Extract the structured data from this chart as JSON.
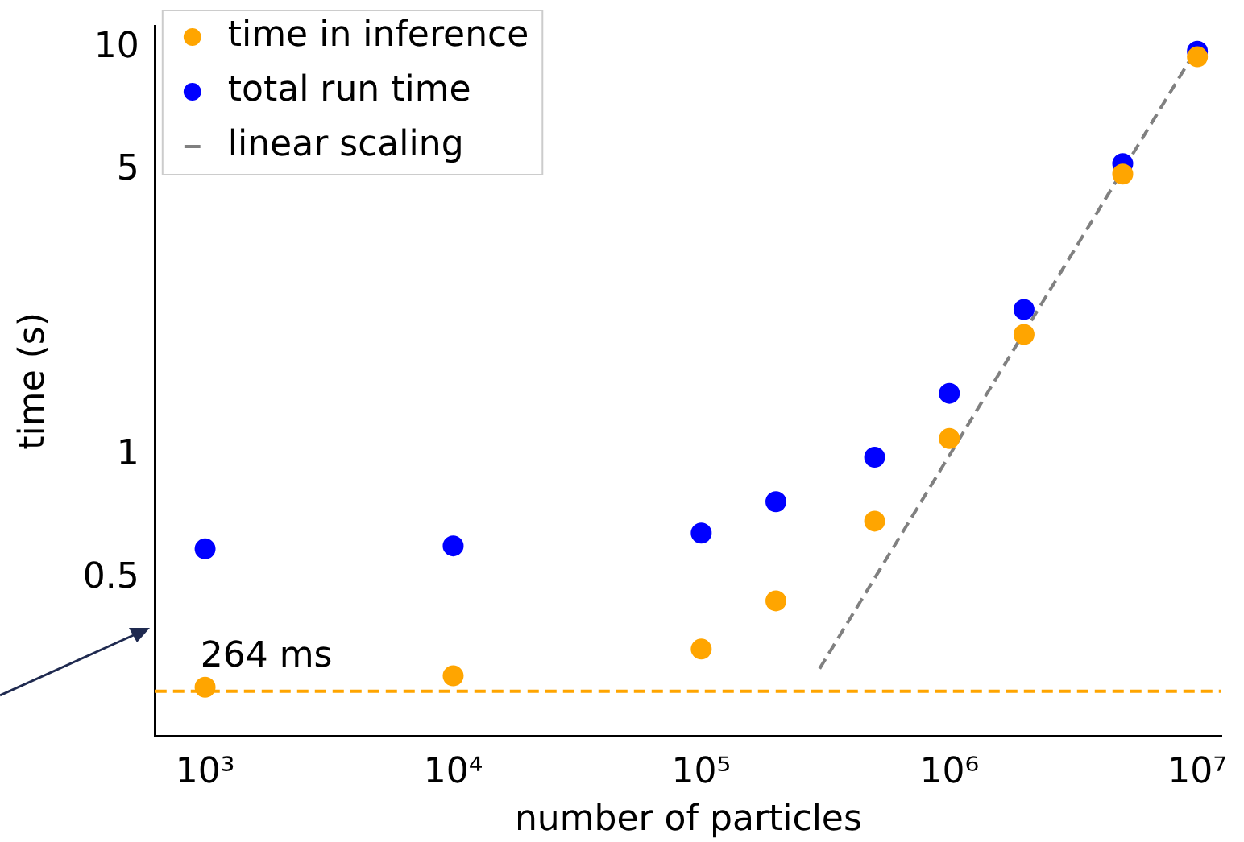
{
  "chart_data": {
    "type": "scatter",
    "xlabel": "number of particles",
    "ylabel": "time (s)",
    "log": "xy",
    "grid": false,
    "legend": "top left",
    "marker": "circle",
    "xlim": [
      630,
      12500000
    ],
    "xticks": [
      {
        "value": 1000,
        "label": "10³"
      },
      {
        "value": 10000,
        "label": "10⁴"
      },
      {
        "value": 100000,
        "label": "10⁵"
      },
      {
        "value": 1000000,
        "label": "10⁶"
      },
      {
        "value": 10000000,
        "label": "10⁷"
      }
    ],
    "ylim": [
      0.205,
      11.3
    ],
    "yticks": [
      0.5,
      1,
      5,
      10
    ],
    "x": [
      1000,
      10000,
      100000,
      200000,
      500000,
      1000000,
      2000000,
      5000000,
      10000000
    ],
    "series": [
      {
        "name": "linear scaling",
        "type": "line",
        "color": "#808080",
        "line_style": "dashed",
        "marker": "none",
        "x": [
          300000,
          10000000
        ],
        "values": [
          0.3,
          10
        ]
      },
      {
        "name": "total run time",
        "color": "#0000ff",
        "values": [
          0.59,
          0.6,
          0.645,
          0.77,
          0.99,
          1.42,
          2.28,
          5.2,
          9.8
        ]
      },
      {
        "name": "time in inference",
        "color": "#ffa500",
        "values": [
          0.27,
          0.288,
          0.335,
          0.44,
          0.69,
          1.1,
          1.98,
          4.9,
          9.5
        ]
      }
    ],
    "ref_lines": [
      {
        "axis": "y",
        "value": 0.264,
        "label": "264 ms",
        "color": "#ffa500",
        "line_style": "dashed"
      }
    ]
  }
}
